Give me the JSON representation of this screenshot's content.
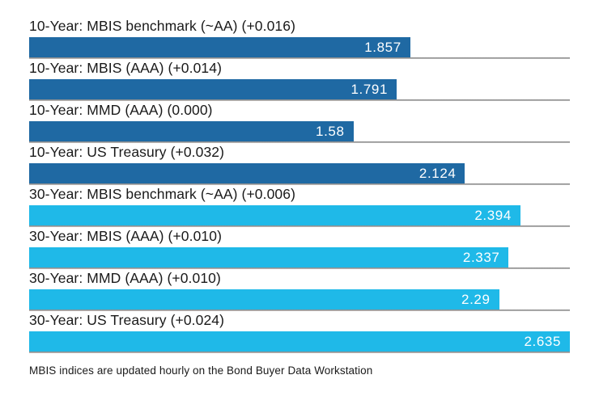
{
  "chart_data": {
    "type": "bar",
    "orientation": "horizontal",
    "title": "",
    "xlabel": "",
    "ylabel": "",
    "xlim": [
      0,
      2.635
    ],
    "grid": false,
    "legend": false,
    "value_label_position": "inside-end",
    "bars": [
      {
        "label": "10-Year: MBIS benchmark (~AA) (+0.016)",
        "value": 1.857,
        "display": "1.857",
        "group": "10-Year",
        "color": "#1f69a3"
      },
      {
        "label": "10-Year: MBIS (AAA) (+0.014)",
        "value": 1.791,
        "display": "1.791",
        "group": "10-Year",
        "color": "#1f69a3"
      },
      {
        "label": "10-Year: MMD (AAA) (0.000)",
        "value": 1.58,
        "display": "1.58",
        "group": "10-Year",
        "color": "#1f69a3"
      },
      {
        "label": "10-Year: US Treasury (+0.032)",
        "value": 2.124,
        "display": "2.124",
        "group": "10-Year",
        "color": "#1f69a3"
      },
      {
        "label": "30-Year: MBIS benchmark (~AA) (+0.006)",
        "value": 2.394,
        "display": "2.394",
        "group": "30-Year",
        "color": "#1fb9e8"
      },
      {
        "label": "30-Year: MBIS (AAA) (+0.010)",
        "value": 2.337,
        "display": "2.337",
        "group": "30-Year",
        "color": "#1fb9e8"
      },
      {
        "label": "30-Year: MMD (AAA) (+0.010)",
        "value": 2.29,
        "display": "2.29",
        "group": "30-Year",
        "color": "#1fb9e8"
      },
      {
        "label": "30-Year: US Treasury (+0.024)",
        "value": 2.635,
        "display": "2.635",
        "group": "30-Year",
        "color": "#1fb9e8"
      }
    ],
    "footnote": "MBIS indices are updated hourly on the Bond Buyer Data Workstation"
  },
  "colors": {
    "ten_year_bar": "#1f69a3",
    "thirty_year_bar": "#1fb9e8",
    "bar_value_text": "#ffffff",
    "label_text": "#1a1a1a",
    "divider": "#8c8c8c",
    "background": "#ffffff"
  }
}
